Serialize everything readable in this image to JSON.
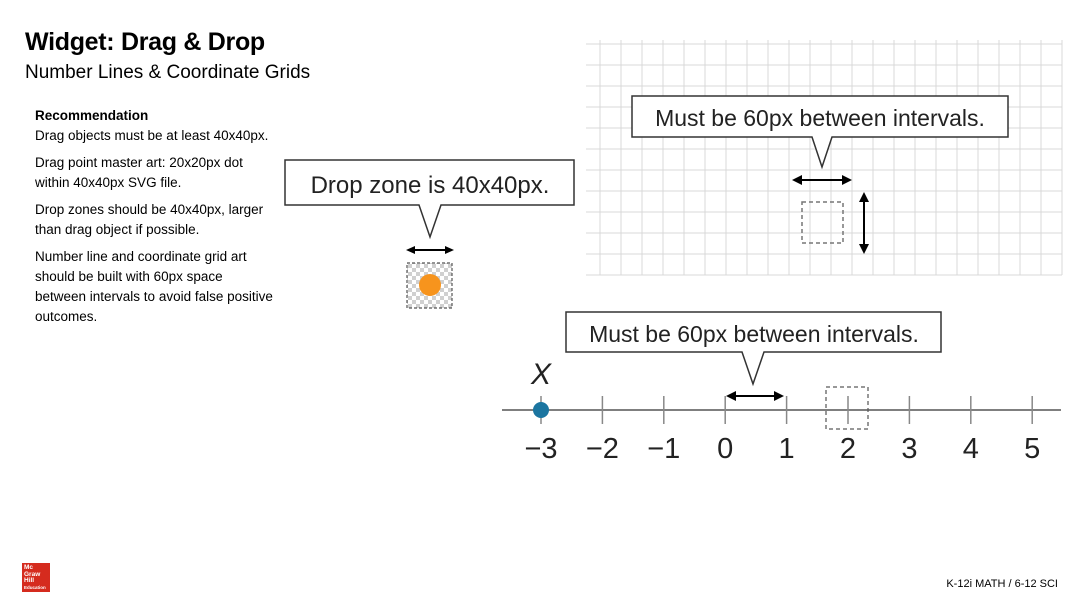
{
  "header": {
    "title": "Widget: Drag & Drop",
    "subtitle": "Number Lines & Coordinate Grids"
  },
  "recommendation": {
    "heading": "Recommendation",
    "paragraphs": [
      "Drag objects must be at least 40x40px.",
      "Drag point master art: 20x20px dot within 40x40px SVG file.",
      "Drop zones should be 40x40px, larger than drag object if possible.",
      "Number line and coordinate grid art should be built with 60px space between intervals to avoid false positive outcomes."
    ]
  },
  "callouts": {
    "drop_zone": "Drop zone is 40x40px.",
    "grid_interval": "Must be 60px between intervals.",
    "line_interval": "Must be 60px between intervals."
  },
  "number_line": {
    "variable_label": "X",
    "ticks": [
      "−3",
      "−2",
      "−1",
      "0",
      "1",
      "2",
      "3",
      "4",
      "5"
    ]
  },
  "colors": {
    "drag_dot": "#f7941d",
    "point": "#1b75a0",
    "grid": "#d9d9d9",
    "brand": "#d52b1e"
  },
  "logo": {
    "lines": [
      "Mc",
      "Graw",
      "Hill",
      "Education"
    ]
  },
  "footer": {
    "text": "K-12i MATH / 6-12 SCI"
  }
}
